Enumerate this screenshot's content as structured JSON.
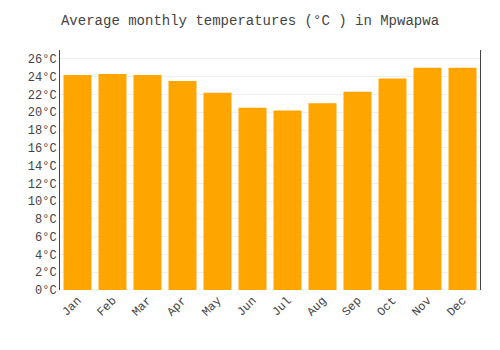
{
  "chart_data": {
    "type": "bar",
    "title": "Average monthly temperatures (°C ) in Mpwapwa",
    "categories": [
      "Jan",
      "Feb",
      "Mar",
      "Apr",
      "May",
      "Jun",
      "Jul",
      "Aug",
      "Sep",
      "Oct",
      "Nov",
      "Dec"
    ],
    "values": [
      24.2,
      24.3,
      24.2,
      23.5,
      22.2,
      20.5,
      20.2,
      21.0,
      22.3,
      23.8,
      25.0,
      25.0
    ],
    "color": "#FFA500",
    "ylim": [
      0,
      27
    ],
    "yticks": [
      {
        "value": 0,
        "label": "0°C"
      },
      {
        "value": 2,
        "label": "2°C"
      },
      {
        "value": 4,
        "label": "4°C"
      },
      {
        "value": 6,
        "label": "6°C"
      },
      {
        "value": 8,
        "label": "8°C"
      },
      {
        "value": 10,
        "label": "10°C"
      },
      {
        "value": 12,
        "label": "12°C"
      },
      {
        "value": 14,
        "label": "14°C"
      },
      {
        "value": 16,
        "label": "16°C"
      },
      {
        "value": 18,
        "label": "18°C"
      },
      {
        "value": 20,
        "label": "20°C"
      },
      {
        "value": 22,
        "label": "22°C"
      },
      {
        "value": 24,
        "label": "24°C"
      },
      {
        "value": 26,
        "label": "26°C"
      }
    ],
    "grid": true
  }
}
